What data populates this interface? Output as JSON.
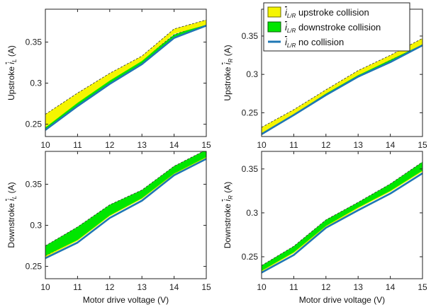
{
  "legend": {
    "placement": "top-right",
    "items": [
      {
        "label": "upstroke collision",
        "symbol_text": "i",
        "symbol_sub": "L/R",
        "color": "#f5f500",
        "border": "#6b6b00",
        "kind": "patch"
      },
      {
        "label": "downstroke collision",
        "symbol_text": "i",
        "symbol_sub": "L/R",
        "color": "#00e600",
        "border": "#0a5a0a",
        "kind": "patch"
      },
      {
        "label": "no collision",
        "symbol_text": "i",
        "symbol_sub": "L/R",
        "color": "#1f77b4",
        "kind": "line"
      }
    ]
  },
  "chart_data": [
    {
      "type": "area",
      "panel": "top-left",
      "ylabel": {
        "prefix": "Upstroke ",
        "symbol": "i",
        "sub": "L",
        "unit": " (A)"
      },
      "xlabel": "",
      "xlim": [
        10,
        15
      ],
      "ylim": [
        0.235,
        0.39
      ],
      "xticks": [
        "10",
        "11",
        "12",
        "13",
        "14",
        "15"
      ],
      "yticks": [
        {
          "v": 0.25,
          "t": "0.25"
        },
        {
          "v": 0.3,
          "t": "0.3"
        },
        {
          "v": 0.35,
          "t": "0.35"
        }
      ],
      "x": [
        10,
        11,
        12,
        13,
        14,
        15
      ],
      "no_collision": [
        0.243,
        0.272,
        0.299,
        0.323,
        0.355,
        0.37
      ],
      "upstroke_band": {
        "lower": [
          0.246,
          0.276,
          0.303,
          0.327,
          0.36,
          0.371
        ],
        "upper": [
          0.262,
          0.288,
          0.312,
          0.333,
          0.366,
          0.377
        ],
        "color": "#f5f500"
      },
      "downstroke_band": {
        "lower": [
          0.244,
          0.273,
          0.3,
          0.324,
          0.356,
          0.371
        ],
        "upper": [
          0.249,
          0.278,
          0.305,
          0.328,
          0.359,
          0.373
        ],
        "color": "#00e600"
      },
      "draw_order": [
        "downstroke_band",
        "upstroke_band"
      ]
    },
    {
      "type": "area",
      "panel": "top-right",
      "ylabel": {
        "prefix": "Upstroke ",
        "symbol": "i",
        "sub": "R",
        "unit": " (A)"
      },
      "xlabel": "",
      "xlim": [
        10,
        15
      ],
      "ylim": [
        0.219,
        0.385
      ],
      "xticks": [
        "10",
        "11",
        "12",
        "13",
        "14",
        "15"
      ],
      "yticks": [
        {
          "v": 0.25,
          "t": "0.25"
        },
        {
          "v": 0.3,
          "t": "0.3"
        },
        {
          "v": 0.35,
          "t": "0.35"
        }
      ],
      "x": [
        10,
        11,
        12,
        13,
        14,
        15
      ],
      "no_collision": [
        0.222,
        0.247,
        0.273,
        0.297,
        0.316,
        0.338
      ],
      "upstroke_band": {
        "lower": [
          0.223,
          0.248,
          0.275,
          0.299,
          0.319,
          0.339
        ],
        "upper": [
          0.231,
          0.254,
          0.28,
          0.305,
          0.325,
          0.347
        ],
        "color": "#f5f500"
      },
      "downstroke_band": {
        "lower": [
          0.222,
          0.247,
          0.274,
          0.298,
          0.317,
          0.338
        ],
        "upper": [
          0.224,
          0.249,
          0.276,
          0.3,
          0.319,
          0.34
        ],
        "color": "#00e600"
      },
      "draw_order": [
        "downstroke_band",
        "upstroke_band"
      ]
    },
    {
      "type": "area",
      "panel": "bottom-left",
      "ylabel": {
        "prefix": "Downstroke ",
        "symbol": "i",
        "sub": "L",
        "unit": " (A)"
      },
      "xlabel": "Motor drive voltage (V)",
      "xlim": [
        10,
        15
      ],
      "ylim": [
        0.235,
        0.39
      ],
      "xticks": [
        "10",
        "11",
        "12",
        "13",
        "14",
        "15"
      ],
      "yticks": [
        {
          "v": 0.25,
          "t": "0.25"
        },
        {
          "v": 0.3,
          "t": "0.3"
        },
        {
          "v": 0.35,
          "t": "0.35"
        }
      ],
      "x": [
        10,
        11,
        12,
        13,
        14,
        15
      ],
      "no_collision": [
        0.26,
        0.279,
        0.309,
        0.33,
        0.361,
        0.381
      ],
      "upstroke_band": {
        "lower": [
          0.261,
          0.281,
          0.311,
          0.332,
          0.362,
          0.382
        ],
        "upper": [
          0.263,
          0.283,
          0.313,
          0.334,
          0.364,
          0.384
        ],
        "color": "#f5f500"
      },
      "downstroke_band": {
        "lower": [
          0.263,
          0.282,
          0.312,
          0.333,
          0.363,
          0.383
        ],
        "upper": [
          0.275,
          0.298,
          0.325,
          0.343,
          0.372,
          0.392
        ],
        "color": "#00e600"
      },
      "draw_order": [
        "upstroke_band",
        "downstroke_band"
      ]
    },
    {
      "type": "area",
      "panel": "bottom-right",
      "ylabel": {
        "prefix": "Downstroke ",
        "symbol": "i",
        "sub": "R",
        "unit": " (A)"
      },
      "xlabel": "Motor drive voltage (V)",
      "xlim": [
        10,
        15
      ],
      "ylim": [
        0.225,
        0.37
      ],
      "xticks": [
        "10",
        "11",
        "12",
        "13",
        "14",
        "15"
      ],
      "yticks": [
        {
          "v": 0.25,
          "t": "0.25"
        },
        {
          "v": 0.3,
          "t": "0.3"
        },
        {
          "v": 0.35,
          "t": "0.35"
        }
      ],
      "x": [
        10,
        11,
        12,
        13,
        14,
        15
      ],
      "no_collision": [
        0.232,
        0.252,
        0.283,
        0.303,
        0.322,
        0.345
      ],
      "upstroke_band": {
        "lower": [
          0.233,
          0.254,
          0.283,
          0.305,
          0.324,
          0.347
        ],
        "upper": [
          0.236,
          0.257,
          0.289,
          0.307,
          0.326,
          0.349
        ],
        "color": "#f5f500"
      },
      "downstroke_band": {
        "lower": [
          0.234,
          0.255,
          0.285,
          0.306,
          0.325,
          0.348
        ],
        "upper": [
          0.24,
          0.262,
          0.292,
          0.312,
          0.333,
          0.358
        ],
        "color": "#00e600"
      },
      "draw_order": [
        "upstroke_band",
        "downstroke_band"
      ]
    }
  ]
}
